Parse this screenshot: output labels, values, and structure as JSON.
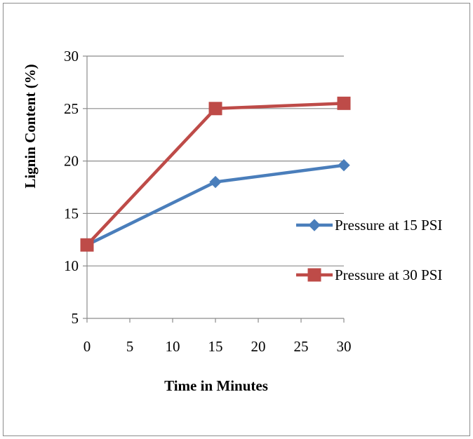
{
  "chart_data": {
    "type": "line",
    "xlabel": "Time in Minutes",
    "ylabel": "Lignin Content (%)",
    "xlim": [
      0,
      30
    ],
    "ylim": [
      5,
      30
    ],
    "xticks": [
      0,
      5,
      10,
      15,
      20,
      25,
      30
    ],
    "yticks": [
      5,
      10,
      15,
      20,
      25,
      30
    ],
    "grid": "horizontal",
    "legend_position": "right",
    "x": [
      0,
      15,
      30
    ],
    "series": [
      {
        "name": "Pressure at 15 PSI",
        "values": [
          12,
          18,
          19.6
        ],
        "color": "#4a7ebb",
        "marker": "diamond"
      },
      {
        "name": "Pressure at 30 PSI",
        "values": [
          12,
          25,
          25.5
        ],
        "color": "#be4b48",
        "marker": "square"
      }
    ]
  }
}
